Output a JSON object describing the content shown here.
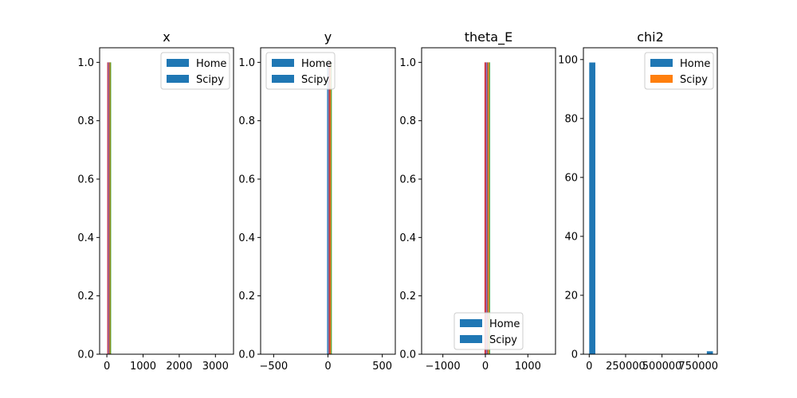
{
  "colors": {
    "blue": "#1f77b4",
    "orange": "#ff7f0e",
    "green": "#2ca02c",
    "red": "#d62728",
    "purple": "#9467bd",
    "brown": "#8c564b",
    "axis": "#000000"
  },
  "chart_data": [
    {
      "type": "bar",
      "title": "x",
      "xlabel": "",
      "ylabel": "",
      "xlim": [
        -200,
        3500
      ],
      "ylim": [
        0,
        1.05
      ],
      "xticks": [
        0,
        1000,
        2000,
        3000
      ],
      "xtick_labels": [
        "0",
        "1000",
        "2000",
        "3000"
      ],
      "yticks": [
        0.0,
        0.2,
        0.4,
        0.6,
        0.8,
        1.0
      ],
      "ytick_labels": [
        "0.0",
        "0.2",
        "0.4",
        "0.6",
        "0.8",
        "1.0"
      ],
      "legend": {
        "entries": [
          "Home",
          "Scipy"
        ],
        "colors": [
          "#1f77b4",
          "#1f77b4"
        ],
        "loc": "upper right"
      },
      "bars": [
        {
          "x0": 10,
          "x1": 30,
          "value": 1.0,
          "color": "#d62728"
        },
        {
          "x0": 30,
          "x1": 55,
          "value": 1.0,
          "color": "#9467bd"
        },
        {
          "x0": 55,
          "x1": 75,
          "value": 1.0,
          "color": "#8c564b"
        },
        {
          "x0": 75,
          "x1": 95,
          "value": 1.0,
          "color": "#ff7f0e"
        },
        {
          "x0": 95,
          "x1": 115,
          "value": 1.0,
          "color": "#2ca02c"
        }
      ]
    },
    {
      "type": "bar",
      "title": "y",
      "xlabel": "",
      "ylabel": "",
      "xlim": [
        -620,
        620
      ],
      "ylim": [
        0,
        1.05
      ],
      "xticks": [
        -500,
        0,
        500
      ],
      "xtick_labels": [
        "−500",
        "0",
        "500"
      ],
      "yticks": [
        0.0,
        0.2,
        0.4,
        0.6,
        0.8,
        1.0
      ],
      "ytick_labels": [
        "0.0",
        "0.2",
        "0.4",
        "0.6",
        "0.8",
        "1.0"
      ],
      "legend": {
        "entries": [
          "Home",
          "Scipy"
        ],
        "colors": [
          "#1f77b4",
          "#1f77b4"
        ],
        "loc": "upper left"
      },
      "bars": [
        {
          "x0": -8,
          "x1": 2,
          "value": 1.0,
          "color": "#1f77b4"
        },
        {
          "x0": 2,
          "x1": 8,
          "value": 1.0,
          "color": "#9467bd"
        },
        {
          "x0": 8,
          "x1": 14,
          "value": 1.0,
          "color": "#8c564b"
        },
        {
          "x0": 14,
          "x1": 21,
          "value": 1.0,
          "color": "#d62728"
        },
        {
          "x0": 21,
          "x1": 28,
          "value": 1.0,
          "color": "#ff7f0e"
        },
        {
          "x0": 28,
          "x1": 35,
          "value": 1.0,
          "color": "#2ca02c"
        }
      ]
    },
    {
      "type": "bar",
      "title": "theta_E",
      "xlabel": "",
      "ylabel": "",
      "xlim": [
        -1500,
        1650
      ],
      "ylim": [
        0,
        1.05
      ],
      "xticks": [
        -1000,
        0,
        1000
      ],
      "xtick_labels": [
        "−1000",
        "0",
        "1000"
      ],
      "yticks": [
        0.0,
        0.2,
        0.4,
        0.6,
        0.8,
        1.0
      ],
      "ytick_labels": [
        "0.0",
        "0.2",
        "0.4",
        "0.6",
        "0.8",
        "1.0"
      ],
      "legend": {
        "entries": [
          "Home",
          "Scipy"
        ],
        "colors": [
          "#1f77b4",
          "#1f77b4"
        ],
        "loc": "lower center"
      },
      "bars": [
        {
          "x0": -20,
          "x1": 10,
          "value": 1.0,
          "color": "#d62728"
        },
        {
          "x0": 10,
          "x1": 40,
          "value": 1.0,
          "color": "#9467bd"
        },
        {
          "x0": 40,
          "x1": 65,
          "value": 1.0,
          "color": "#8c564b"
        },
        {
          "x0": 65,
          "x1": 90,
          "value": 1.0,
          "color": "#ff7f0e"
        },
        {
          "x0": 90,
          "x1": 110,
          "value": 1.0,
          "color": "#2ca02c"
        }
      ]
    },
    {
      "type": "bar",
      "title": "chi2",
      "xlabel": "",
      "ylabel": "",
      "xlim": [
        -40000,
        880000
      ],
      "ylim": [
        0,
        104
      ],
      "xticks": [
        0,
        250000,
        500000,
        750000
      ],
      "xtick_labels": [
        "0",
        "250000",
        "500000",
        "750000"
      ],
      "yticks": [
        0,
        20,
        40,
        60,
        80,
        100
      ],
      "ytick_labels": [
        "0",
        "20",
        "40",
        "60",
        "80",
        "100"
      ],
      "legend": {
        "entries": [
          "Home",
          "Scipy"
        ],
        "colors": [
          "#1f77b4",
          "#ff7f0e"
        ],
        "loc": "upper right"
      },
      "bars": [
        {
          "x0": 0,
          "x1": 42000,
          "value": 99,
          "color": "#1f77b4"
        },
        {
          "x0": 808000,
          "x1": 850000,
          "value": 1,
          "color": "#1f77b4"
        }
      ]
    }
  ]
}
